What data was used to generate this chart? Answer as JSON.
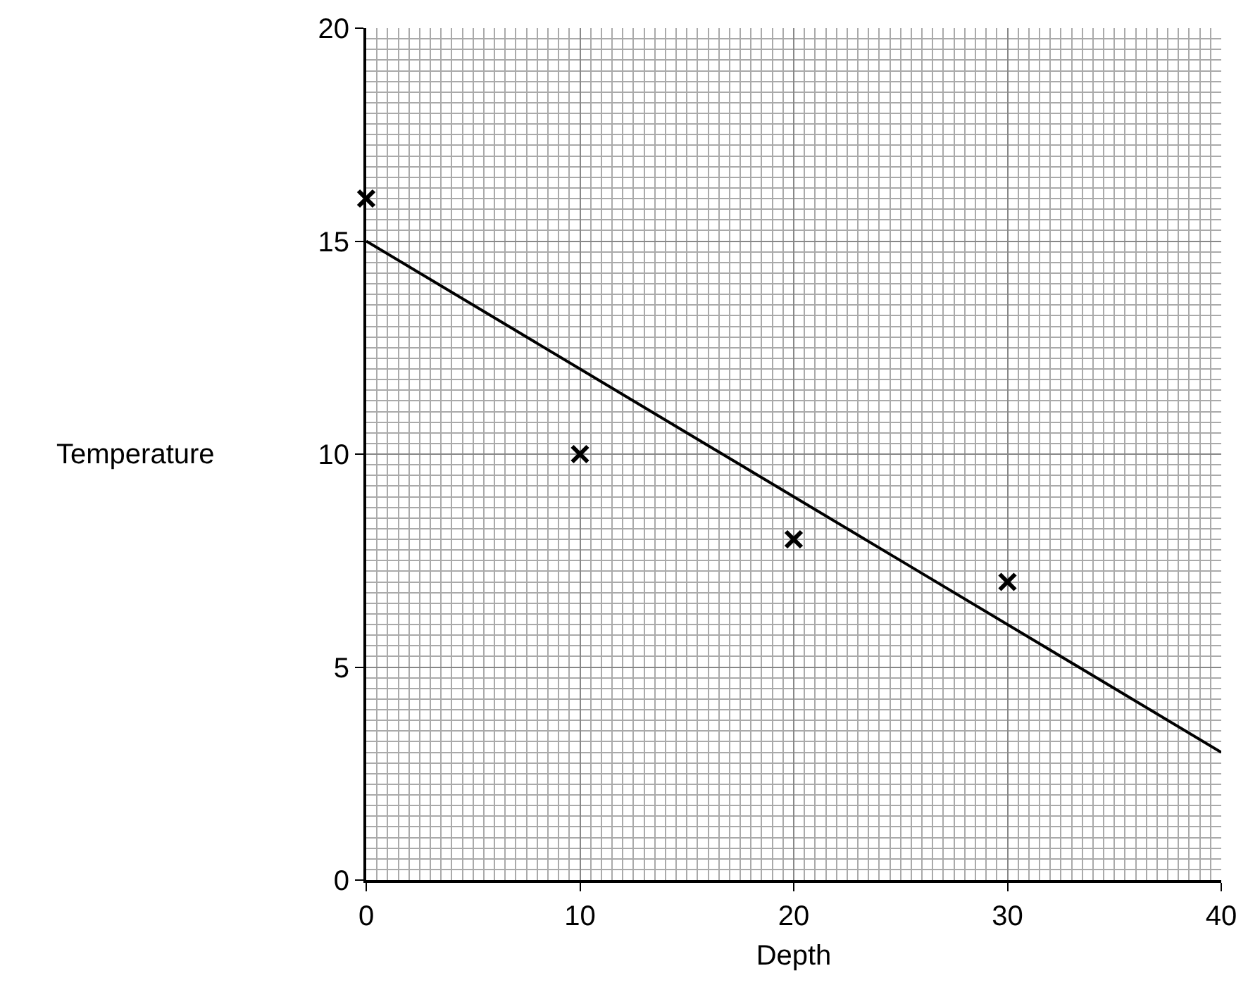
{
  "chart_data": {
    "type": "scatter",
    "xlabel": "Depth",
    "ylabel": "Temperature",
    "x": [
      0,
      10,
      20,
      30
    ],
    "series": [
      {
        "type": "scatter",
        "color": "#000000",
        "values": [
          16,
          10,
          8,
          7
        ],
        "marker": "cross"
      },
      {
        "type": "line",
        "color": "#000000",
        "x": [
          0,
          40
        ],
        "values": [
          15,
          3
        ],
        "marker": "none",
        "line_style": "solid"
      }
    ],
    "xlim": [
      0,
      40
    ],
    "xticks": [
      0,
      10,
      20,
      30,
      40
    ],
    "ylim": [
      0,
      20
    ],
    "yticks": [
      0,
      5,
      10,
      15,
      20
    ],
    "grid": true
  }
}
